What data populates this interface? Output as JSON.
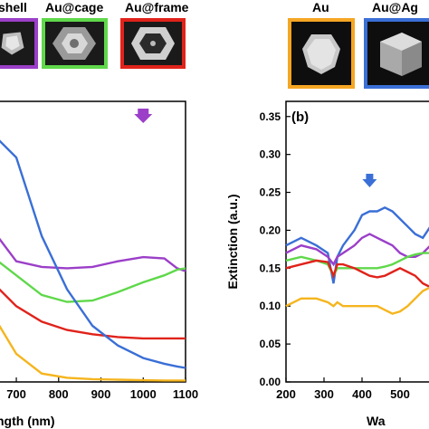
{
  "colors": {
    "purple": "#9b3fc8",
    "green": "#5fd84a",
    "red": "#e0231b",
    "blue": "#3a6fd6",
    "yellow": "#f5b51e",
    "orange_frame": "#f5a623"
  },
  "labels": {
    "shell": "shell",
    "cage": "Au@cage",
    "frame": "Au@frame",
    "au": "Au",
    "au_ag": "Au@Ag"
  },
  "thumbnails": [
    {
      "icon": "nanoshell-icon",
      "border": "#9b3fc8"
    },
    {
      "icon": "nanocage-icon",
      "border": "#5fd84a"
    },
    {
      "icon": "nanoframe-icon",
      "border": "#e0231b"
    },
    {
      "icon": "au-sphere-icon",
      "border": "#f5a623"
    },
    {
      "icon": "au-ag-cube-icon",
      "border": "#3a6fd6"
    }
  ],
  "chart_data": [
    {
      "type": "line",
      "panel": "a",
      "xlabel": "ngth (nm)",
      "ylabel": "",
      "xlim": [
        640,
        1100
      ],
      "ylim": [
        0,
        1
      ],
      "x_ticks": [
        "700",
        "800",
        "900",
        "1000",
        "1100"
      ],
      "annotation": "arrow near 1000",
      "series": [
        {
          "color": "purple",
          "x": [
            640,
            700,
            760,
            820,
            880,
            940,
            1000,
            1050,
            1080,
            1100
          ],
          "y": [
            0.55,
            0.43,
            0.41,
            0.405,
            0.41,
            0.43,
            0.445,
            0.44,
            0.405,
            0.395
          ]
        },
        {
          "color": "green",
          "x": [
            640,
            700,
            760,
            820,
            880,
            940,
            1000,
            1050,
            1080,
            1100
          ],
          "y": [
            0.45,
            0.38,
            0.31,
            0.285,
            0.29,
            0.32,
            0.355,
            0.38,
            0.4,
            0.405
          ]
        },
        {
          "color": "red",
          "x": [
            640,
            700,
            760,
            820,
            880,
            940,
            1000,
            1050,
            1080,
            1100
          ],
          "y": [
            0.36,
            0.27,
            0.215,
            0.185,
            0.17,
            0.16,
            0.155,
            0.155,
            0.155,
            0.155
          ]
        },
        {
          "color": "blue",
          "x": [
            640,
            700,
            760,
            820,
            880,
            940,
            1000,
            1050,
            1080,
            1100
          ],
          "y": [
            0.89,
            0.8,
            0.52,
            0.33,
            0.2,
            0.13,
            0.085,
            0.065,
            0.055,
            0.05
          ]
        },
        {
          "color": "yellow",
          "x": [
            640,
            700,
            760,
            820,
            880,
            940,
            1000,
            1050,
            1080,
            1100
          ],
          "y": [
            0.25,
            0.1,
            0.03,
            0.015,
            0.01,
            0.008,
            0.006,
            0.005,
            0.005,
            0.005
          ]
        }
      ]
    },
    {
      "type": "line",
      "panel": "b",
      "panel_label": "(b)",
      "xlabel": "Wa",
      "ylabel": "Extinction (a.u.)",
      "xlim": [
        200,
        600
      ],
      "ylim": [
        0,
        0.37
      ],
      "x_ticks": [
        "200",
        "300",
        "400",
        "500"
      ],
      "y_ticks": [
        "0.00",
        "0.05",
        "0.10",
        "0.15",
        "0.20",
        "0.25",
        "0.30",
        "0.35"
      ],
      "annotation": "arrow near 420",
      "series": [
        {
          "color": "blue",
          "x": [
            200,
            240,
            280,
            310,
            325,
            335,
            350,
            380,
            400,
            420,
            440,
            460,
            480,
            500,
            520,
            540,
            560,
            580,
            600
          ],
          "y": [
            0.18,
            0.19,
            0.18,
            0.17,
            0.13,
            0.165,
            0.18,
            0.2,
            0.22,
            0.225,
            0.225,
            0.23,
            0.225,
            0.215,
            0.205,
            0.195,
            0.19,
            0.205,
            0.22
          ]
        },
        {
          "color": "purple",
          "x": [
            200,
            240,
            280,
            310,
            325,
            335,
            350,
            380,
            400,
            420,
            440,
            460,
            480,
            500,
            520,
            540,
            560,
            580,
            600
          ],
          "y": [
            0.17,
            0.18,
            0.175,
            0.165,
            0.155,
            0.165,
            0.17,
            0.18,
            0.19,
            0.195,
            0.19,
            0.185,
            0.18,
            0.17,
            0.165,
            0.165,
            0.17,
            0.18,
            0.19
          ]
        },
        {
          "color": "green",
          "x": [
            200,
            240,
            280,
            310,
            325,
            335,
            350,
            380,
            400,
            420,
            440,
            460,
            480,
            500,
            520,
            540,
            560,
            580,
            600
          ],
          "y": [
            0.16,
            0.165,
            0.16,
            0.155,
            0.14,
            0.15,
            0.15,
            0.15,
            0.15,
            0.15,
            0.15,
            0.152,
            0.155,
            0.16,
            0.165,
            0.168,
            0.17,
            0.17,
            0.172
          ]
        },
        {
          "color": "red",
          "x": [
            200,
            240,
            280,
            310,
            325,
            335,
            350,
            380,
            400,
            420,
            440,
            460,
            480,
            500,
            520,
            540,
            560,
            580,
            600
          ],
          "y": [
            0.15,
            0.155,
            0.16,
            0.158,
            0.14,
            0.155,
            0.155,
            0.15,
            0.145,
            0.14,
            0.138,
            0.14,
            0.145,
            0.15,
            0.145,
            0.14,
            0.13,
            0.125,
            0.13
          ]
        },
        {
          "color": "yellow",
          "x": [
            200,
            240,
            280,
            310,
            325,
            335,
            350,
            380,
            400,
            420,
            440,
            460,
            480,
            500,
            520,
            540,
            560,
            580,
            600
          ],
          "y": [
            0.1,
            0.11,
            0.11,
            0.105,
            0.1,
            0.105,
            0.1,
            0.1,
            0.1,
            0.1,
            0.1,
            0.095,
            0.09,
            0.093,
            0.1,
            0.11,
            0.12,
            0.125,
            0.13
          ]
        }
      ]
    }
  ]
}
